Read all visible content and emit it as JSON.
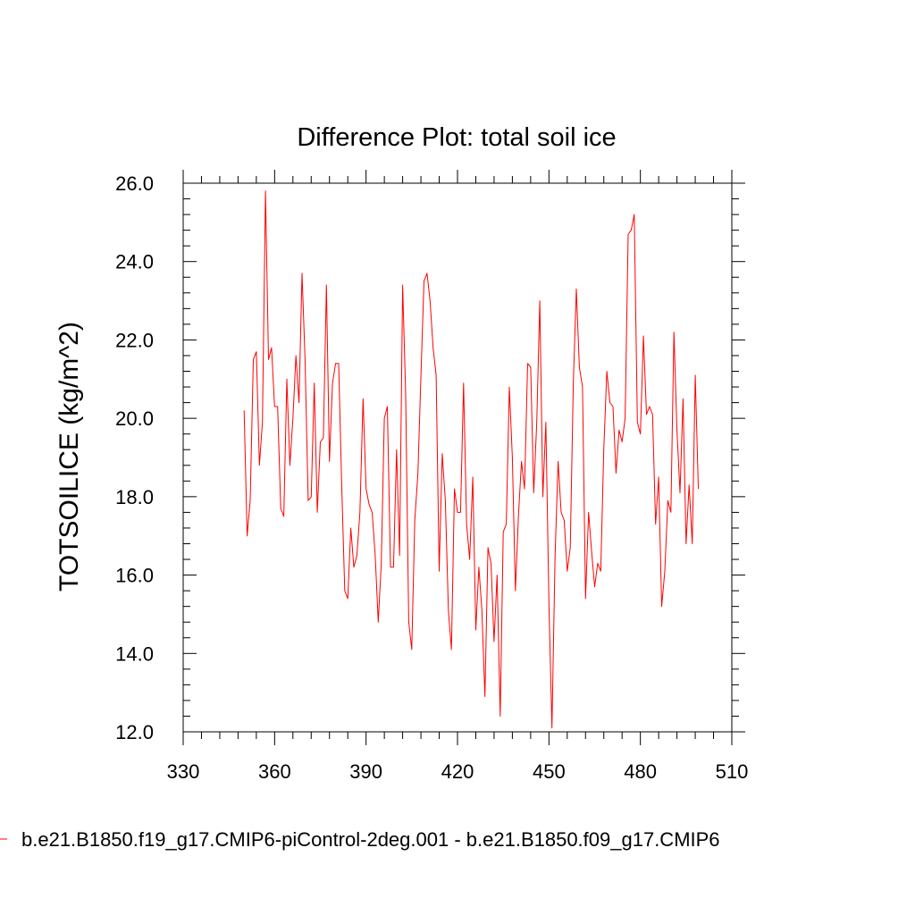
{
  "chart_data": {
    "type": "line",
    "title": "Difference Plot: total soil ice",
    "xlabel": "",
    "ylabel": "TOTSOILICE  (kg/m^2)",
    "xlim": [
      330,
      510
    ],
    "ylim": [
      12.0,
      26.0
    ],
    "xticks": [
      330,
      360,
      390,
      420,
      450,
      480,
      510
    ],
    "yticks": [
      "12.0",
      "14.0",
      "16.0",
      "18.0",
      "20.0",
      "22.0",
      "24.0",
      "26.0"
    ],
    "grid": false,
    "legend_position": "bottom",
    "series": [
      {
        "name": "b.e21.B1850.f19_g17.CMIP6-piControl-2deg.001 - b.e21.B1850.f09_g17.CMIP6",
        "color": "#ff0000",
        "x": [
          350,
          351,
          352,
          353,
          354,
          355,
          356,
          357,
          358,
          359,
          360,
          361,
          362,
          363,
          364,
          365,
          366,
          367,
          368,
          369,
          370,
          371,
          372,
          373,
          374,
          375,
          376,
          377,
          378,
          379,
          380,
          381,
          382,
          383,
          384,
          385,
          386,
          387,
          388,
          389,
          390,
          391,
          392,
          393,
          394,
          395,
          396,
          397,
          398,
          399,
          400,
          401,
          402,
          403,
          404,
          405,
          406,
          407,
          408,
          409,
          410,
          411,
          412,
          413,
          414,
          415,
          416,
          417,
          418,
          419,
          420,
          421,
          422,
          423,
          424,
          425,
          426,
          427,
          428,
          429,
          430,
          431,
          432,
          433,
          434,
          435,
          436,
          437,
          438,
          439,
          440,
          441,
          442,
          443,
          444,
          445,
          446,
          447,
          448,
          449,
          450,
          451,
          452,
          453,
          454,
          455,
          456,
          457,
          458,
          459,
          460,
          461,
          462,
          463,
          464,
          465,
          466,
          467,
          468,
          469,
          470,
          471,
          472,
          473,
          474,
          475,
          476,
          477,
          478,
          479,
          480,
          481,
          482,
          483,
          484,
          485,
          486,
          487,
          488,
          489,
          490,
          491,
          492,
          493,
          494,
          495,
          496,
          497,
          498,
          499
        ],
        "values": [
          20.2,
          17.0,
          17.9,
          21.5,
          21.7,
          18.8,
          19.9,
          25.8,
          21.5,
          21.8,
          20.3,
          20.3,
          17.7,
          17.5,
          21.0,
          18.8,
          20.0,
          21.6,
          20.4,
          23.7,
          21.5,
          17.9,
          18.0,
          20.9,
          17.6,
          19.4,
          19.5,
          23.4,
          18.9,
          20.9,
          21.4,
          21.4,
          18.3,
          15.6,
          15.4,
          17.2,
          16.2,
          16.5,
          17.6,
          20.5,
          18.2,
          17.8,
          17.6,
          16.5,
          14.8,
          16.3,
          20.0,
          20.3,
          16.2,
          16.2,
          19.2,
          16.5,
          23.4,
          20.6,
          14.8,
          14.1,
          17.4,
          18.6,
          21.1,
          23.5,
          23.7,
          23.0,
          21.8,
          21.1,
          16.1,
          19.1,
          17.9,
          15.1,
          14.1,
          18.2,
          17.6,
          17.6,
          20.9,
          17.3,
          16.4,
          18.5,
          14.6,
          16.2,
          15.1,
          12.9,
          16.7,
          16.3,
          14.3,
          16.0,
          12.4,
          17.1,
          17.3,
          20.8,
          19.0,
          15.6,
          17.5,
          18.9,
          18.2,
          21.4,
          21.3,
          18.1,
          19.9,
          23.0,
          18.0,
          19.9,
          15.3,
          12.1,
          16.5,
          18.9,
          17.6,
          17.4,
          16.1,
          16.7,
          20.9,
          23.3,
          21.3,
          20.8,
          15.4,
          17.6,
          16.6,
          15.7,
          16.3,
          16.1,
          19.2,
          21.2,
          20.4,
          20.3,
          18.6,
          19.7,
          19.4,
          20.0,
          24.7,
          24.8,
          25.2,
          19.9,
          19.6,
          22.1,
          20.1,
          20.3,
          20.1,
          17.3,
          18.5,
          15.2,
          16.1,
          17.9,
          17.6,
          22.2,
          19.7,
          18.1,
          20.5,
          16.8,
          18.3,
          16.8,
          21.1,
          18.2
        ]
      }
    ]
  }
}
